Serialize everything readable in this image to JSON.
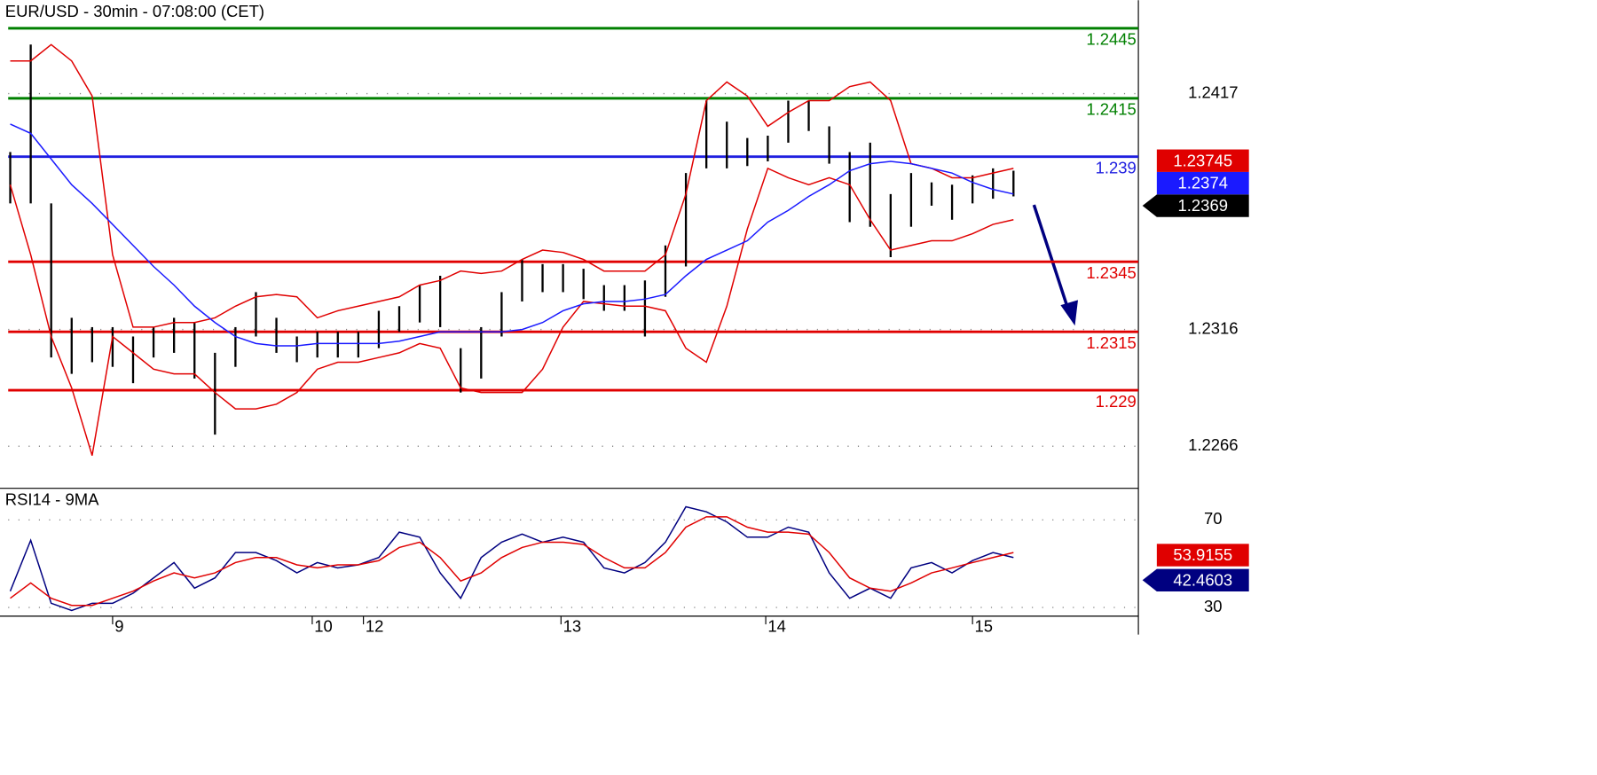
{
  "chart_data": [
    {
      "type": "ohlc",
      "title": "EUR/USD - 30min - 07:08:00 (CET)",
      "x": [
        0,
        1,
        2,
        3,
        4,
        5,
        6,
        7,
        8,
        9,
        10,
        11,
        12,
        13,
        14,
        15,
        16,
        17,
        18,
        19,
        20,
        21,
        22,
        23,
        24,
        25,
        26,
        27,
        28,
        29,
        30,
        31,
        32,
        33,
        34,
        35,
        36,
        37,
        38,
        39,
        40,
        41,
        42,
        43,
        44,
        45,
        46,
        47,
        48,
        49
      ],
      "high": [
        1.2392,
        1.2438,
        1.237,
        1.2321,
        1.2317,
        1.2317,
        1.2313,
        1.2317,
        1.2321,
        1.2319,
        1.2306,
        1.2317,
        1.2332,
        1.2321,
        1.2313,
        1.2315,
        1.2315,
        1.2315,
        1.2324,
        1.2326,
        1.2335,
        1.2339,
        1.2308,
        1.2317,
        1.2332,
        1.2346,
        1.2344,
        1.2344,
        1.2342,
        1.2335,
        1.2335,
        1.2337,
        1.2352,
        1.2383,
        1.2414,
        1.2405,
        1.2398,
        1.2399,
        1.2414,
        1.2414,
        1.2403,
        1.2392,
        1.2396,
        1.2374,
        1.2383,
        1.2379,
        1.2378,
        1.2382,
        1.2385,
        1.2384
      ],
      "low": [
        1.237,
        1.237,
        1.2304,
        1.2297,
        1.2302,
        1.23,
        1.2293,
        1.2304,
        1.2306,
        1.2295,
        1.2271,
        1.23,
        1.2313,
        1.2306,
        1.2302,
        1.2304,
        1.2304,
        1.2304,
        1.2308,
        1.2315,
        1.2319,
        1.2317,
        1.2289,
        1.2295,
        1.2313,
        1.2328,
        1.2332,
        1.2332,
        1.2329,
        1.2324,
        1.2324,
        1.2313,
        1.233,
        1.2343,
        1.2385,
        1.2385,
        1.2386,
        1.2388,
        1.2396,
        1.2401,
        1.2387,
        1.2362,
        1.236,
        1.2347,
        1.236,
        1.2369,
        1.2363,
        1.237,
        1.2372,
        1.2373
      ],
      "bar_color": "#000000",
      "series": [
        {
          "color": "#e00000",
          "values": [
            1.2431,
            1.2431,
            1.2438,
            1.2431,
            1.2416,
            1.2348,
            1.2317,
            1.2317,
            1.2319,
            1.2319,
            1.2321,
            1.2326,
            1.233,
            1.2331,
            1.233,
            1.2321,
            1.2324,
            1.2326,
            1.2328,
            1.233,
            1.2335,
            1.2337,
            1.2341,
            1.234,
            1.2341,
            1.2346,
            1.235,
            1.2349,
            1.2346,
            1.2341,
            1.2341,
            1.2341,
            1.2348,
            1.2374,
            1.2414,
            1.2422,
            1.2416,
            1.2403,
            1.2409,
            1.2414,
            1.2414,
            1.242,
            1.2422,
            1.2414,
            1.2387,
            1.2385,
            1.2381,
            1.2381,
            1.2383,
            1.2385
          ]
        },
        {
          "color": "#e00000",
          "values": [
            1.2378,
            1.2348,
            1.2313,
            1.2291,
            1.2262,
            1.2313,
            1.2306,
            1.2299,
            1.2297,
            1.2297,
            1.2289,
            1.2282,
            1.2282,
            1.2284,
            1.2289,
            1.2299,
            1.2302,
            1.2302,
            1.2304,
            1.2306,
            1.231,
            1.2308,
            1.2291,
            1.2289,
            1.2289,
            1.2289,
            1.2299,
            1.2317,
            1.2328,
            1.2327,
            1.2326,
            1.2326,
            1.2324,
            1.2308,
            1.2302,
            1.2326,
            1.2359,
            1.2385,
            1.2381,
            1.2378,
            1.2381,
            1.2378,
            1.2363,
            1.235,
            1.2352,
            1.2354,
            1.2354,
            1.2357,
            1.2361,
            1.2363
          ]
        },
        {
          "color": "#1a1aff",
          "values": [
            1.2404,
            1.24,
            1.2389,
            1.2378,
            1.237,
            1.2361,
            1.2352,
            1.2343,
            1.2335,
            1.2326,
            1.2319,
            1.2313,
            1.231,
            1.2309,
            1.2309,
            1.231,
            1.231,
            1.231,
            1.231,
            1.2311,
            1.2313,
            1.2315,
            1.2315,
            1.2315,
            1.2315,
            1.2316,
            1.2319,
            1.2324,
            1.2327,
            1.2328,
            1.2328,
            1.2329,
            1.2331,
            1.2339,
            1.2346,
            1.235,
            1.2354,
            1.2362,
            1.2367,
            1.2373,
            1.2378,
            1.2384,
            1.2387,
            1.2388,
            1.2387,
            1.2385,
            1.2383,
            1.2379,
            1.2376,
            1.2374
          ]
        }
      ],
      "levels": [
        {
          "value": 1.2445,
          "color": "#008000"
        },
        {
          "value": 1.2415,
          "color": "#008000"
        },
        {
          "value": 1.239,
          "color": "#2020e0"
        },
        {
          "value": 1.2345,
          "color": "#e00000"
        },
        {
          "value": 1.2315,
          "color": "#e00000"
        },
        {
          "value": 1.229,
          "color": "#e00000"
        }
      ],
      "last_labels": [
        {
          "value": 1.23745,
          "color": "#e00000",
          "pointer": false
        },
        {
          "value": 1.2374,
          "color": "#1a1aff",
          "pointer": false
        },
        {
          "value": 1.2369,
          "color": "#000000",
          "pointer": true
        }
      ],
      "xlim": [
        -0.1,
        55.1
      ],
      "ylim": [
        1.2248,
        1.2457
      ],
      "yticks": [
        1.2266,
        1.2316,
        1.2417
      ],
      "grid": true
    },
    {
      "type": "line",
      "title": "RSI14 - 9MA",
      "x": [
        0,
        1,
        2,
        3,
        4,
        5,
        6,
        7,
        8,
        9,
        10,
        11,
        12,
        13,
        14,
        15,
        16,
        17,
        18,
        19,
        20,
        21,
        22,
        23,
        24,
        25,
        26,
        27,
        28,
        29,
        30,
        31,
        32,
        33,
        34,
        35,
        36,
        37,
        38,
        39,
        40,
        41,
        42,
        43,
        44,
        45,
        46,
        47,
        48,
        49
      ],
      "series": [
        {
          "color": "#000080",
          "values": [
            37.4,
            60.7,
            31.9,
            28.6,
            31.9,
            31.9,
            36.5,
            43.5,
            50.5,
            38.8,
            43.5,
            55.1,
            55.1,
            51.4,
            45.8,
            50.5,
            48.1,
            49.5,
            52.8,
            64.4,
            62.1,
            45.8,
            34.2,
            52.8,
            59.8,
            63.5,
            59.8,
            62.1,
            59.8,
            48.1,
            45.8,
            50.5,
            59.8,
            76.0,
            73.7,
            69.1,
            62.1,
            62.1,
            66.7,
            64.4,
            45.8,
            34.2,
            38.8,
            34.2,
            48.1,
            50.5,
            45.8,
            51.4,
            55.1,
            52.8
          ]
        },
        {
          "color": "#e00000",
          "values": [
            34.2,
            41.2,
            34.2,
            30.9,
            30.9,
            34.2,
            37.4,
            42.1,
            45.8,
            43.5,
            45.8,
            50.5,
            52.8,
            52.8,
            49.5,
            48.1,
            49.5,
            49.5,
            51.4,
            57.4,
            59.8,
            52.8,
            42.1,
            45.8,
            52.8,
            57.4,
            59.8,
            59.8,
            58.8,
            52.8,
            48.1,
            48.1,
            55.1,
            66.7,
            71.4,
            71.4,
            66.7,
            64.4,
            64.4,
            63.5,
            55.1,
            43.5,
            38.8,
            37.4,
            41.2,
            45.8,
            48.1,
            50.5,
            52.8,
            55.1
          ]
        }
      ],
      "last_labels": [
        {
          "value": 53.9155,
          "color": "#e00000",
          "pointer": false
        },
        {
          "value": 42.4603,
          "color": "#000080",
          "pointer": true
        }
      ],
      "xlim": [
        -0.1,
        55.1
      ],
      "ylim": [
        26,
        84
      ],
      "yticks": [
        30,
        70
      ],
      "xticks": [
        {
          "value": 5,
          "label": "9"
        },
        {
          "value": 14.75,
          "label": "10"
        },
        {
          "value": 17.25,
          "label": "12"
        },
        {
          "value": 26.9,
          "label": "13"
        },
        {
          "value": 36.9,
          "label": "14"
        },
        {
          "value": 47,
          "label": "15"
        }
      ],
      "grid": true
    }
  ]
}
